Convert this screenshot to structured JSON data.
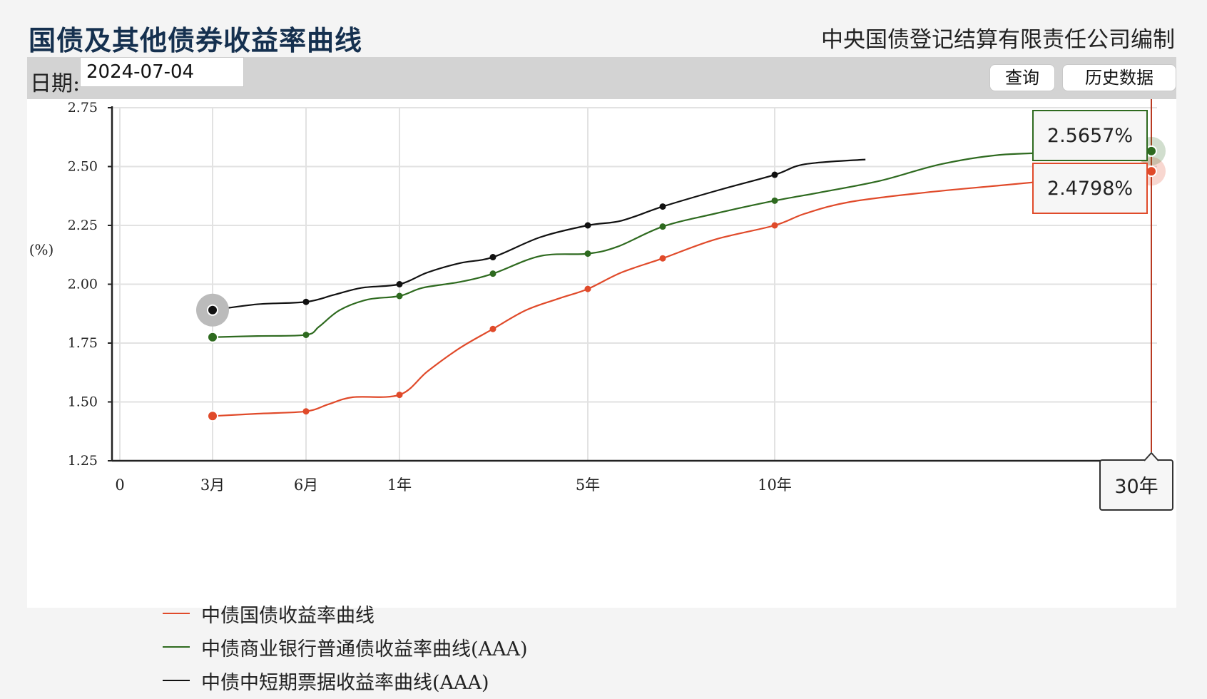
{
  "header": {
    "title": "国债及其他债券收益率曲线",
    "org": "中央国债登记结算有限责任公司编制"
  },
  "toolbar": {
    "date_label": "日期:",
    "date_value": "2024-07-04",
    "query_label": "查询",
    "history_label": "历史数据"
  },
  "chart_data": {
    "type": "line",
    "ylabel": "(%)",
    "ylim": [
      1.25,
      2.75
    ],
    "yticks": [
      "2.75",
      "2.50",
      "2.25",
      "2.00",
      "1.75",
      "1.50",
      "1.25"
    ],
    "xlim": [
      0,
      30
    ],
    "xticks": [
      {
        "x": 0,
        "label": "0"
      },
      {
        "x": 0.25,
        "label": "3月"
      },
      {
        "x": 0.5,
        "label": "6月"
      },
      {
        "x": 1,
        "label": "1年"
      },
      {
        "x": 5,
        "label": "5年"
      },
      {
        "x": 10,
        "label": "10年"
      }
    ],
    "grid": true,
    "legend_position": "bottom-left",
    "tooltip": {
      "x_label": "30年",
      "values": [
        "2.5657%",
        "2.4798%"
      ]
    },
    "series": [
      {
        "name": "中债国债收益率曲线",
        "color": "#e04a2a",
        "points": [
          [
            0.25,
            1.44
          ],
          [
            0.5,
            1.46
          ],
          [
            1,
            1.53
          ],
          [
            3,
            1.81
          ],
          [
            5,
            1.98
          ],
          [
            7,
            2.11
          ],
          [
            10,
            2.25
          ],
          [
            30,
            2.48
          ]
        ],
        "curve": [
          [
            0.25,
            1.44
          ],
          [
            0.37,
            1.45
          ],
          [
            0.5,
            1.46
          ],
          [
            0.62,
            1.49
          ],
          [
            0.75,
            1.52
          ],
          [
            1,
            1.53
          ],
          [
            1.6,
            1.63
          ],
          [
            2.3,
            1.73
          ],
          [
            3,
            1.81
          ],
          [
            3.7,
            1.89
          ],
          [
            4.4,
            1.94
          ],
          [
            5,
            1.98
          ],
          [
            5.9,
            2.05
          ],
          [
            7,
            2.11
          ],
          [
            8.4,
            2.19
          ],
          [
            10,
            2.25
          ],
          [
            11,
            2.3
          ],
          [
            12.5,
            2.35
          ],
          [
            15,
            2.39
          ],
          [
            20,
            2.42
          ],
          [
            25,
            2.45
          ],
          [
            30,
            2.48
          ]
        ]
      },
      {
        "name": "中债商业银行普通债收益率曲线(AAA)",
        "color": "#2e6a1f",
        "points": [
          [
            0.25,
            1.775
          ],
          [
            0.5,
            1.785
          ],
          [
            1,
            1.95
          ],
          [
            3,
            2.045
          ],
          [
            5,
            2.13
          ],
          [
            7,
            2.245
          ],
          [
            10,
            2.355
          ],
          [
            30,
            2.5657
          ]
        ],
        "curve": [
          [
            0.25,
            1.775
          ],
          [
            0.37,
            1.78
          ],
          [
            0.5,
            1.785
          ],
          [
            0.57,
            1.82
          ],
          [
            0.68,
            1.89
          ],
          [
            0.83,
            1.935
          ],
          [
            1,
            1.95
          ],
          [
            1.5,
            1.985
          ],
          [
            2.3,
            2.01
          ],
          [
            3,
            2.045
          ],
          [
            4,
            2.12
          ],
          [
            5,
            2.13
          ],
          [
            5.8,
            2.16
          ],
          [
            7,
            2.245
          ],
          [
            8.4,
            2.3
          ],
          [
            10,
            2.355
          ],
          [
            11.5,
            2.39
          ],
          [
            13.5,
            2.44
          ],
          [
            16,
            2.51
          ],
          [
            20,
            2.55
          ],
          [
            25,
            2.56
          ],
          [
            30,
            2.5657
          ]
        ]
      },
      {
        "name": "中债中短期票据收益率曲线(AAA)",
        "color": "#111111",
        "points": [
          [
            0.25,
            1.89
          ],
          [
            0.5,
            1.925
          ],
          [
            1,
            2.0
          ],
          [
            3,
            2.115
          ],
          [
            5,
            2.25
          ],
          [
            7,
            2.33
          ],
          [
            10,
            2.465
          ]
        ],
        "curve": [
          [
            0.25,
            1.89
          ],
          [
            0.37,
            1.915
          ],
          [
            0.5,
            1.925
          ],
          [
            0.65,
            1.955
          ],
          [
            0.8,
            1.985
          ],
          [
            1,
            2.0
          ],
          [
            1.6,
            2.05
          ],
          [
            2.3,
            2.09
          ],
          [
            3,
            2.115
          ],
          [
            4,
            2.2
          ],
          [
            5,
            2.25
          ],
          [
            5.9,
            2.27
          ],
          [
            7,
            2.33
          ],
          [
            8.5,
            2.4
          ],
          [
            10,
            2.465
          ],
          [
            11,
            2.51
          ],
          [
            13,
            2.53
          ]
        ]
      }
    ]
  }
}
